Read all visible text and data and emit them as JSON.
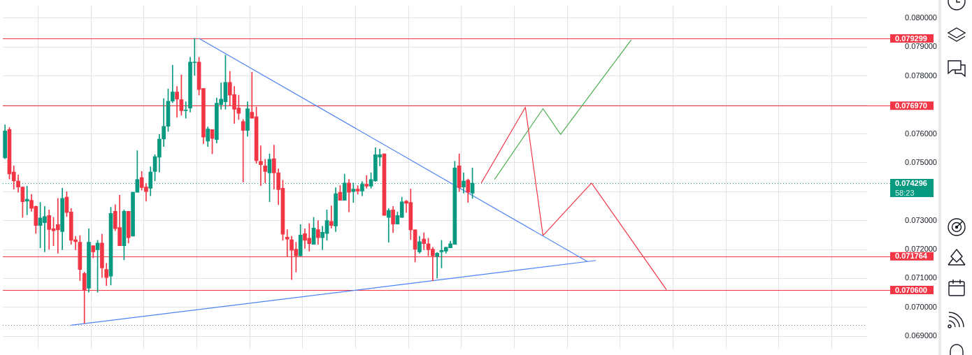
{
  "chart_data": {
    "type": "candlestick",
    "categories": [
      null,
      null,
      null,
      null,
      null,
      null,
      null,
      null,
      null,
      null,
      null,
      null,
      null,
      null,
      null,
      null,
      null,
      null,
      null,
      null,
      null,
      null,
      null,
      null,
      null,
      null,
      null,
      null,
      null,
      null,
      null,
      null,
      null,
      null,
      null,
      null,
      null,
      null,
      null,
      null,
      null,
      null,
      null,
      null,
      null,
      null,
      null,
      null,
      null,
      null,
      null,
      null,
      null,
      null,
      null,
      null,
      null,
      null,
      null,
      null,
      null,
      null,
      null,
      null,
      null,
      null,
      null,
      null,
      null,
      null,
      null,
      null,
      null,
      null,
      null,
      null,
      null,
      null,
      null,
      null,
      null,
      null,
      null,
      null,
      null,
      null,
      null,
      null,
      null,
      null,
      null,
      null,
      null,
      null,
      null,
      null,
      null,
      null,
      null,
      null,
      null,
      null,
      null,
      null,
      null,
      null,
      null,
      null,
      null,
      null,
      null,
      null,
      null,
      null,
      null,
      null,
      null,
      null,
      null,
      null,
      null,
      null,
      null,
      null,
      null,
      null,
      null,
      null,
      null,
      null,
      null,
      null,
      null,
      null,
      null,
      null,
      null,
      null,
      null,
      null,
      null,
      null,
      null,
      null,
      null,
      null,
      null,
      null,
      null,
      null,
      null,
      null,
      null,
      null,
      null,
      null,
      null,
      null,
      null,
      null,
      null,
      null,
      null,
      null,
      null,
      null,
      null,
      null,
      null,
      null,
      null,
      null,
      null,
      null,
      null,
      null,
      null,
      null,
      null,
      null,
      null,
      null,
      null,
      null,
      null,
      null,
      null,
      null,
      null,
      null,
      null,
      null,
      null,
      null,
      null,
      null
    ],
    "ohlc": [
      [
        0.07517,
        0.07631,
        0.07514,
        0.0761
      ],
      [
        0.07615,
        0.07622,
        0.07444,
        0.07461
      ],
      [
        0.07468,
        0.07489,
        0.07409,
        0.07437
      ],
      [
        0.07437,
        0.07458,
        0.07398,
        0.07416
      ],
      [
        0.07416,
        0.07416,
        0.07311,
        0.07365
      ],
      [
        0.07367,
        0.07419,
        0.0732,
        0.07374
      ],
      [
        0.0737,
        0.07391,
        0.07332,
        0.07342
      ],
      [
        0.07349,
        0.07351,
        0.07255,
        0.07283
      ],
      [
        0.07283,
        0.07363,
        0.07206,
        0.07309
      ],
      [
        0.07293,
        0.07349,
        0.07192,
        0.07314
      ],
      [
        0.07318,
        0.07337,
        0.07201,
        0.07269
      ],
      [
        0.07272,
        0.07311,
        0.07213,
        0.07265
      ],
      [
        0.07286,
        0.07377,
        0.07187,
        0.07268
      ],
      [
        0.07262,
        0.07412,
        0.07199,
        0.07377
      ],
      [
        0.07381,
        0.074,
        0.07314,
        0.07328
      ],
      [
        0.0733,
        0.07342,
        0.07218,
        0.07232
      ],
      [
        0.07234,
        0.07246,
        0.07199,
        0.07227
      ],
      [
        0.07225,
        0.07248,
        0.07092,
        0.07131
      ],
      [
        0.07117,
        0.07122,
        0.06945,
        0.07061
      ],
      [
        0.07066,
        0.07272,
        0.07052,
        0.07225
      ],
      [
        0.07213,
        0.07213,
        0.07171,
        0.07192
      ],
      [
        0.07199,
        0.07232,
        0.07052,
        0.07222
      ],
      [
        0.07222,
        0.07253,
        0.07103,
        0.07136
      ],
      [
        0.07131,
        0.07152,
        0.07075,
        0.07103
      ],
      [
        0.07108,
        0.07346,
        0.07077,
        0.07325
      ],
      [
        0.07332,
        0.07355,
        0.07265,
        0.07272
      ],
      [
        0.07276,
        0.07388,
        0.07213,
        0.07213
      ],
      [
        0.07213,
        0.07337,
        0.07164,
        0.07332
      ],
      [
        0.07332,
        0.07332,
        0.07222,
        0.07241
      ],
      [
        0.07246,
        0.07398,
        0.07246,
        0.07398
      ],
      [
        0.07398,
        0.07542,
        0.07398,
        0.07442
      ],
      [
        0.07449,
        0.0747,
        0.07405,
        0.07414
      ],
      [
        0.07416,
        0.07428,
        0.07367,
        0.074
      ],
      [
        0.07412,
        0.07486,
        0.07386,
        0.07468
      ],
      [
        0.0747,
        0.07528,
        0.07437,
        0.07521
      ],
      [
        0.07519,
        0.07598,
        0.07468,
        0.07582
      ],
      [
        0.07582,
        0.07722,
        0.07556,
        0.07626
      ],
      [
        0.07626,
        0.07755,
        0.07608,
        0.07713
      ],
      [
        0.07713,
        0.07837,
        0.07708,
        0.07745
      ],
      [
        0.07745,
        0.07764,
        0.07657,
        0.0772
      ],
      [
        0.07718,
        0.07804,
        0.07664,
        0.0768
      ],
      [
        0.0768,
        0.07711,
        0.07654,
        0.07682
      ],
      [
        0.07689,
        0.07865,
        0.07675,
        0.07848
      ],
      [
        0.07846,
        0.0793,
        0.07802,
        0.07848
      ],
      [
        0.07848,
        0.07865,
        0.07734,
        0.07753
      ],
      [
        0.07757,
        0.07757,
        0.07566,
        0.07589
      ],
      [
        0.07575,
        0.07624,
        0.07556,
        0.07617
      ],
      [
        0.07615,
        0.07615,
        0.07531,
        0.07584
      ],
      [
        0.0758,
        0.07724,
        0.07568,
        0.07706
      ],
      [
        0.07701,
        0.07776,
        0.07685,
        0.0772
      ],
      [
        0.07711,
        0.07872,
        0.07685,
        0.07778
      ],
      [
        0.07778,
        0.07816,
        0.07696,
        0.07734
      ],
      [
        0.07736,
        0.07764,
        0.07636,
        0.07685
      ],
      [
        0.07689,
        0.07734,
        0.0765,
        0.07671
      ],
      [
        0.07643,
        0.0765,
        0.07433,
        0.07612
      ],
      [
        0.07612,
        0.07711,
        0.07591,
        0.07687
      ],
      [
        0.07675,
        0.07813,
        0.07654,
        0.07654
      ],
      [
        0.07659,
        0.07692,
        0.07498,
        0.07507
      ],
      [
        0.07505,
        0.07559,
        0.07421,
        0.07493
      ],
      [
        0.07489,
        0.07512,
        0.0743,
        0.0747
      ],
      [
        0.07465,
        0.07531,
        0.07365,
        0.07512
      ],
      [
        0.07514,
        0.07561,
        0.07409,
        0.07465
      ],
      [
        0.07465,
        0.07479,
        0.07355,
        0.07407
      ],
      [
        0.07412,
        0.0744,
        0.07232,
        0.07253
      ],
      [
        0.07243,
        0.07269,
        0.07176,
        0.07236
      ],
      [
        0.07234,
        0.07246,
        0.07096,
        0.07197
      ],
      [
        0.07201,
        0.07225,
        0.07122,
        0.07178
      ],
      [
        0.07178,
        0.07286,
        0.07178,
        0.0725
      ],
      [
        0.07255,
        0.07272,
        0.07204,
        0.07232
      ],
      [
        0.07239,
        0.0729,
        0.07194,
        0.0722
      ],
      [
        0.07218,
        0.07311,
        0.07218,
        0.07274
      ],
      [
        0.07269,
        0.073,
        0.07218,
        0.07241
      ],
      [
        0.07241,
        0.07281,
        0.07199,
        0.0726
      ],
      [
        0.07255,
        0.07337,
        0.07232,
        0.073
      ],
      [
        0.07297,
        0.07351,
        0.07274,
        0.07283
      ],
      [
        0.07281,
        0.07414,
        0.07262,
        0.07393
      ],
      [
        0.07398,
        0.07421,
        0.0737,
        0.0737
      ],
      [
        0.0737,
        0.07461,
        0.0737,
        0.0743
      ],
      [
        0.0743,
        0.07442,
        0.0733,
        0.07398
      ],
      [
        0.074,
        0.0743,
        0.07363,
        0.07409
      ],
      [
        0.07409,
        0.07421,
        0.07391,
        0.07402
      ],
      [
        0.07402,
        0.07435,
        0.07386,
        0.07426
      ],
      [
        0.07426,
        0.07456,
        0.07412,
        0.07419
      ],
      [
        0.07419,
        0.07465,
        0.07412,
        0.07442
      ],
      [
        0.07437,
        0.07552,
        0.07435,
        0.07528
      ],
      [
        0.07519,
        0.07547,
        0.07489,
        0.07528
      ],
      [
        0.07531,
        0.07531,
        0.07318,
        0.07318
      ],
      [
        0.07311,
        0.07342,
        0.07225,
        0.07335
      ],
      [
        0.07337,
        0.07349,
        0.07258,
        0.07288
      ],
      [
        0.07288,
        0.0733,
        0.07288,
        0.07318
      ],
      [
        0.07311,
        0.07381,
        0.07311,
        0.07365
      ],
      [
        0.07367,
        0.0737,
        0.07328,
        0.0736
      ],
      [
        0.07363,
        0.07409,
        0.07234,
        0.07268
      ],
      [
        0.07268,
        0.07268,
        0.07157,
        0.07201
      ],
      [
        0.07192,
        0.07246,
        0.07187,
        0.07227
      ],
      [
        0.07236,
        0.07258,
        0.07199,
        0.0722
      ],
      [
        0.0722,
        0.07239,
        0.07178,
        0.07199
      ],
      [
        0.07201,
        0.07208,
        0.07092,
        0.07178
      ],
      [
        0.07176,
        0.0719,
        0.07101,
        0.07187
      ],
      [
        0.07192,
        0.07232,
        0.07136,
        0.07197
      ],
      [
        0.07194,
        0.07208,
        0.07187,
        0.07208
      ],
      [
        0.07206,
        0.07229,
        0.07206,
        0.0722
      ],
      [
        0.07218,
        0.07505,
        0.07218,
        0.07482
      ],
      [
        0.07489,
        0.07531,
        0.074,
        0.07414
      ],
      [
        0.07416,
        0.07465,
        0.07395,
        0.07437
      ],
      [
        0.0744,
        0.07444,
        0.07363,
        0.07398
      ],
      [
        0.07395,
        0.07482,
        0.07377,
        0.074296
      ],
      null,
      null,
      null,
      null,
      null,
      null,
      null,
      null,
      null,
      null,
      null,
      null,
      null,
      null,
      null,
      null,
      null,
      null,
      null,
      null,
      null,
      null,
      null,
      null,
      null,
      null,
      null,
      null,
      null,
      null,
      null,
      null,
      null,
      null,
      null,
      null,
      null,
      null,
      null,
      null,
      null,
      null,
      null,
      null,
      null,
      null,
      null,
      null,
      null,
      null,
      null,
      null,
      null,
      null,
      null,
      null,
      null,
      null,
      null,
      null,
      null,
      null,
      null,
      null,
      null,
      null,
      null,
      null,
      null,
      null,
      null,
      null,
      null,
      null,
      null,
      null,
      null,
      null,
      null,
      null,
      null,
      null,
      null,
      null,
      null,
      null,
      null,
      null,
      null
    ],
    "colors": [
      "#089981",
      "#f23645",
      "#f23645",
      "#f23645",
      "#f23645",
      "#089981",
      "#f23645",
      "#f23645",
      "#089981",
      "#089981",
      "#f23645",
      "#f23645",
      "#f23645",
      "#089981",
      "#f23645",
      "#f23645",
      "#f23645",
      "#f23645",
      "#f23645",
      "#089981",
      "#f23645",
      "#089981",
      "#f23645",
      "#f23645",
      "#089981",
      "#f23645",
      "#f23645",
      "#089981",
      "#f23645",
      "#089981",
      "#089981",
      "#f23645",
      "#f23645",
      "#089981",
      "#089981",
      "#089981",
      "#089981",
      "#089981",
      "#089981",
      "#f23645",
      "#f23645",
      "#089981",
      "#089981",
      "#089981",
      "#f23645",
      "#f23645",
      "#089981",
      "#f23645",
      "#089981",
      "#089981",
      "#089981",
      "#f23645",
      "#f23645",
      "#f23645",
      "#f23645",
      "#089981",
      "#f23645",
      "#f23645",
      "#f23645",
      "#f23645",
      "#089981",
      "#f23645",
      "#f23645",
      "#f23645",
      "#f23645",
      "#f23645",
      "#f23645",
      "#089981",
      "#f23645",
      "#f23645",
      "#089981",
      "#f23645",
      "#089981",
      "#089981",
      "#f23645",
      "#089981",
      "#f23645",
      "#089981",
      "#f23645",
      "#089981",
      "#f23645",
      "#089981",
      "#f23645",
      "#089981",
      "#089981",
      "#089981",
      "#f23645",
      "#089981",
      "#f23645",
      "#089981",
      "#089981",
      "#f23645",
      "#f23645",
      "#f23645",
      "#089981",
      "#f23645",
      "#f23645",
      "#f23645",
      "#089981",
      "#089981",
      "#089981",
      "#089981",
      "#089981",
      "#f23645",
      "#089981",
      "#f23645",
      "#089981",
      null,
      null,
      null,
      null,
      null,
      null,
      null,
      null,
      null,
      null,
      null,
      null,
      null,
      null,
      null,
      null,
      null,
      null,
      null,
      null,
      null,
      null,
      null,
      null,
      null,
      null,
      null,
      null,
      null,
      null,
      null,
      null,
      null,
      null,
      null,
      null,
      null,
      null,
      null,
      null,
      null,
      null,
      null,
      null,
      null,
      null,
      null,
      null,
      null,
      null,
      null,
      null,
      null,
      null,
      null,
      null,
      null,
      null,
      null,
      null,
      null,
      null,
      null,
      null,
      null,
      null,
      null,
      null,
      null,
      null,
      null,
      null,
      null,
      null,
      null,
      null,
      null,
      null,
      null,
      null,
      null,
      null,
      null,
      null,
      null,
      null,
      null,
      null,
      null
    ],
    "series": [
      {
        "type": "line",
        "color": "#4c84f5",
        "values": [
          null,
          null,
          null,
          null,
          null,
          null,
          null,
          null,
          null,
          null,
          null,
          null,
          null,
          null,
          null,
          null,
          null,
          null,
          null,
          null,
          null,
          null,
          null,
          null,
          null,
          null,
          null,
          null,
          null,
          null,
          null,
          null,
          null,
          null,
          null,
          null,
          null,
          null,
          null,
          null,
          null,
          null,
          null,
          null,
          0.0793,
          null,
          null,
          null,
          null,
          null,
          null,
          null,
          null,
          null,
          null,
          null,
          null,
          null,
          null,
          null,
          null,
          null,
          null,
          null,
          null,
          null,
          null,
          null,
          null,
          null,
          null,
          null,
          null,
          null,
          null,
          null,
          null,
          null,
          null,
          null,
          null,
          null,
          null,
          null,
          null,
          null,
          null,
          null,
          null,
          null,
          null,
          null,
          null,
          null,
          null,
          null,
          null,
          null,
          null,
          null,
          null,
          null,
          null,
          null,
          null,
          null,
          null,
          null,
          null,
          null,
          null,
          null,
          null,
          null,
          null,
          null,
          null,
          null,
          null,
          null,
          null,
          null,
          null,
          null,
          null,
          null,
          null,
          null,
          null,
          null,
          null,
          null,
          0.07159,
          null,
          null,
          null,
          null,
          null,
          null,
          null,
          null,
          null,
          null,
          null,
          null,
          null,
          null,
          null,
          null,
          null,
          null,
          null,
          null,
          null,
          null,
          null,
          null,
          null,
          null,
          null,
          null,
          null,
          null,
          null,
          null,
          null,
          null,
          null,
          null,
          null,
          null,
          null,
          null,
          null,
          null,
          null,
          null,
          null,
          null,
          null,
          null,
          null,
          null,
          null,
          null,
          null,
          null,
          null,
          null,
          null,
          null,
          null,
          null,
          null,
          null,
          null
        ]
      },
      {
        "type": "line",
        "color": "#4c84f5",
        "values": [
          null,
          null,
          null,
          null,
          null,
          null,
          null,
          null,
          null,
          null,
          null,
          null,
          null,
          null,
          null,
          0.06938,
          null,
          null,
          null,
          null,
          null,
          null,
          null,
          null,
          null,
          null,
          null,
          null,
          null,
          null,
          null,
          null,
          null,
          null,
          null,
          null,
          null,
          null,
          null,
          null,
          null,
          null,
          null,
          null,
          null,
          null,
          null,
          null,
          null,
          null,
          null,
          null,
          null,
          null,
          null,
          null,
          null,
          null,
          null,
          null,
          null,
          null,
          null,
          null,
          null,
          null,
          null,
          null,
          null,
          null,
          null,
          null,
          null,
          null,
          null,
          null,
          null,
          null,
          null,
          null,
          null,
          null,
          null,
          null,
          null,
          null,
          null,
          null,
          null,
          null,
          null,
          null,
          null,
          null,
          null,
          null,
          null,
          null,
          null,
          null,
          null,
          null,
          null,
          null,
          null,
          null,
          null,
          null,
          null,
          null,
          null,
          null,
          null,
          null,
          null,
          null,
          null,
          null,
          null,
          null,
          null,
          null,
          null,
          null,
          null,
          null,
          null,
          null,
          null,
          null,
          null,
          null,
          null,
          null,
          0.07162,
          null,
          null,
          null,
          null,
          null,
          null,
          null,
          null,
          null,
          null,
          null,
          null,
          null,
          null,
          null,
          null,
          null,
          null,
          null,
          null,
          null,
          null,
          null,
          null,
          null,
          null,
          null,
          null,
          null,
          null,
          null,
          null,
          null,
          null,
          null,
          null,
          null,
          null,
          null,
          null,
          null,
          null,
          null,
          null,
          null,
          null,
          null,
          null,
          null,
          null,
          null,
          null,
          null,
          null,
          null,
          null,
          null,
          null,
          null,
          null,
          null
        ]
      },
      {
        "type": "line",
        "color": "#f23645",
        "values": [
          null,
          null,
          null,
          null,
          null,
          null,
          null,
          null,
          null,
          null,
          null,
          null,
          null,
          null,
          null,
          null,
          null,
          null,
          null,
          null,
          null,
          null,
          null,
          null,
          null,
          null,
          null,
          null,
          null,
          null,
          null,
          null,
          null,
          null,
          null,
          null,
          null,
          null,
          null,
          null,
          null,
          null,
          null,
          null,
          null,
          null,
          null,
          null,
          null,
          null,
          null,
          null,
          null,
          null,
          null,
          null,
          null,
          null,
          null,
          null,
          null,
          null,
          null,
          null,
          null,
          null,
          null,
          null,
          null,
          null,
          null,
          null,
          null,
          null,
          null,
          null,
          null,
          null,
          null,
          null,
          null,
          null,
          null,
          null,
          null,
          null,
          null,
          null,
          null,
          null,
          null,
          null,
          null,
          null,
          null,
          null,
          null,
          null,
          null,
          null,
          null,
          null,
          null,
          null,
          null,
          null,
          null,
          null,
          0.0743,
          null,
          null,
          null,
          null,
          null,
          null,
          null,
          null,
          null,
          0.07692,
          null,
          null,
          null,
          0.07248,
          null,
          null,
          null,
          null,
          null,
          null,
          null,
          null,
          null,
          null,
          0.0743,
          null,
          null,
          null,
          null,
          null,
          null,
          null,
          null,
          null,
          null,
          null,
          null,
          null,
          null,
          null,
          null,
          0.07061,
          null,
          null,
          null,
          null,
          null,
          null,
          null,
          null,
          null,
          null,
          null,
          null,
          null,
          null,
          null,
          null,
          null,
          null,
          null,
          null,
          null,
          null,
          null,
          null,
          null,
          null,
          null,
          null,
          null,
          null,
          null,
          null,
          null,
          null,
          null,
          null,
          null,
          null,
          null,
          null,
          null,
          null,
          null,
          null,
          null
        ]
      },
      {
        "type": "line",
        "color": "#4caf50",
        "values": [
          null,
          null,
          null,
          null,
          null,
          null,
          null,
          null,
          null,
          null,
          null,
          null,
          null,
          null,
          null,
          null,
          null,
          null,
          null,
          null,
          null,
          null,
          null,
          null,
          null,
          null,
          null,
          null,
          null,
          null,
          null,
          null,
          null,
          null,
          null,
          null,
          null,
          null,
          null,
          null,
          null,
          null,
          null,
          null,
          null,
          null,
          null,
          null,
          null,
          null,
          null,
          null,
          null,
          null,
          null,
          null,
          null,
          null,
          null,
          null,
          null,
          null,
          null,
          null,
          null,
          null,
          null,
          null,
          null,
          null,
          null,
          null,
          null,
          null,
          null,
          null,
          null,
          null,
          null,
          null,
          null,
          null,
          null,
          null,
          null,
          null,
          null,
          null,
          null,
          null,
          null,
          null,
          null,
          null,
          null,
          null,
          null,
          null,
          null,
          null,
          null,
          null,
          null,
          null,
          null,
          null,
          null,
          null,
          null,
          null,
          null,
          0.07442,
          null,
          null,
          null,
          null,
          null,
          null,
          null,
          null,
          null,
          null,
          0.07687,
          null,
          null,
          null,
          0.07598,
          null,
          null,
          null,
          null,
          null,
          null,
          null,
          null,
          null,
          null,
          null,
          null,
          null,
          null,
          null,
          0.07925,
          null,
          null,
          null,
          null,
          null,
          null,
          null,
          null,
          null,
          null,
          null,
          null,
          null,
          null,
          null,
          null,
          null,
          null,
          null,
          null,
          null,
          null,
          null,
          null,
          null,
          null,
          null,
          null,
          null,
          null,
          null,
          null,
          null,
          null,
          null,
          null,
          null,
          null,
          null,
          null,
          null,
          null,
          null,
          null,
          null,
          null,
          null,
          null,
          null,
          null,
          null,
          null,
          null
        ]
      }
    ],
    "ylim": [
      0.06856,
      0.08042
    ],
    "yticks": [
      {
        "value": 0.069,
        "label": "0.069000"
      },
      {
        "value": 0.07,
        "label": "0.070000"
      },
      {
        "value": 0.071,
        "label": "0.071000"
      },
      {
        "value": 0.072,
        "label": "0.072000"
      },
      {
        "value": 0.073,
        "label": "0.073000"
      },
      {
        "value": 0.074,
        "label": null
      },
      {
        "value": 0.075,
        "label": "0.075000"
      },
      {
        "value": 0.076,
        "label": "0.076000"
      },
      {
        "value": 0.077,
        "label": null
      },
      {
        "value": 0.078,
        "label": "0.078000"
      },
      {
        "value": 0.079,
        "label": "0.079000"
      },
      {
        "value": 0.08,
        "label": "0.080000"
      }
    ],
    "ref_lines": [
      {
        "axis": "y",
        "value": 0.079299,
        "label": "0.079299",
        "color": "#f23645"
      },
      {
        "axis": "y",
        "value": 0.07697,
        "label": "0.076970",
        "color": "#f23645"
      },
      {
        "axis": "y",
        "value": 0.074296,
        "label": "0.074296\n58:23",
        "color": "#089981",
        "line_style": "dotted"
      },
      {
        "axis": "y",
        "value": 0.071764,
        "label": "0.071764",
        "color": "#f23645"
      },
      {
        "axis": "y",
        "value": 0.0706,
        "label": "0.070600",
        "color": "#f23645"
      },
      {
        "axis": "y",
        "value": 0.0694,
        "label": null,
        "color": "#787b86",
        "line_style": "dotted"
      }
    ],
    "grid": true,
    "tick_labels": "y",
    "legend": false
  }
}
